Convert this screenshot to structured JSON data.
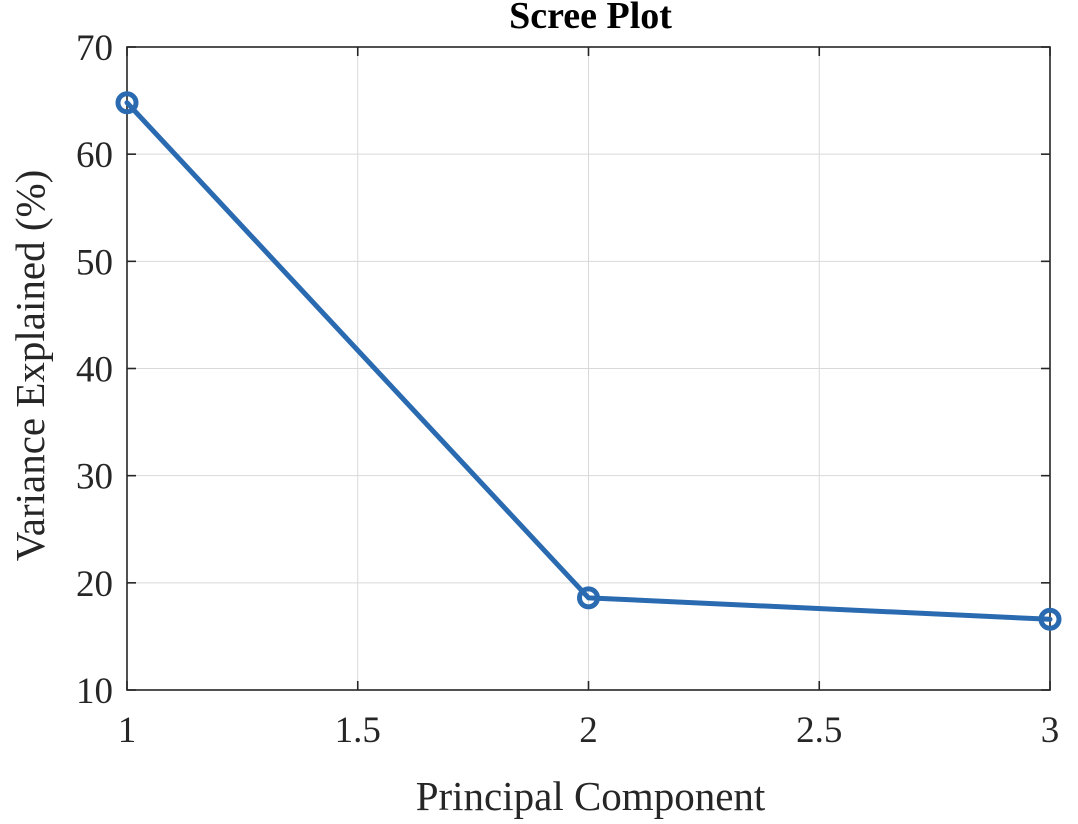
{
  "chart_data": {
    "type": "line",
    "title": "Scree Plot",
    "xlabel": "Principal Component",
    "ylabel": "Variance Explained (%)",
    "xlim": [
      1,
      3
    ],
    "ylim": [
      10,
      70
    ],
    "xticks": [
      1,
      1.5,
      2,
      2.5,
      3
    ],
    "xtick_labels": [
      "1",
      "1.5",
      "2",
      "2.5",
      "3"
    ],
    "yticks": [
      10,
      20,
      30,
      40,
      50,
      60,
      70
    ],
    "ytick_labels": [
      "10",
      "20",
      "30",
      "40",
      "50",
      "60",
      "70"
    ],
    "grid": true,
    "series": [
      {
        "x": [
          1,
          2,
          3
        ],
        "y": [
          64.8,
          18.6,
          16.6
        ],
        "color": "#2a6ab0",
        "marker": "circle"
      }
    ]
  }
}
